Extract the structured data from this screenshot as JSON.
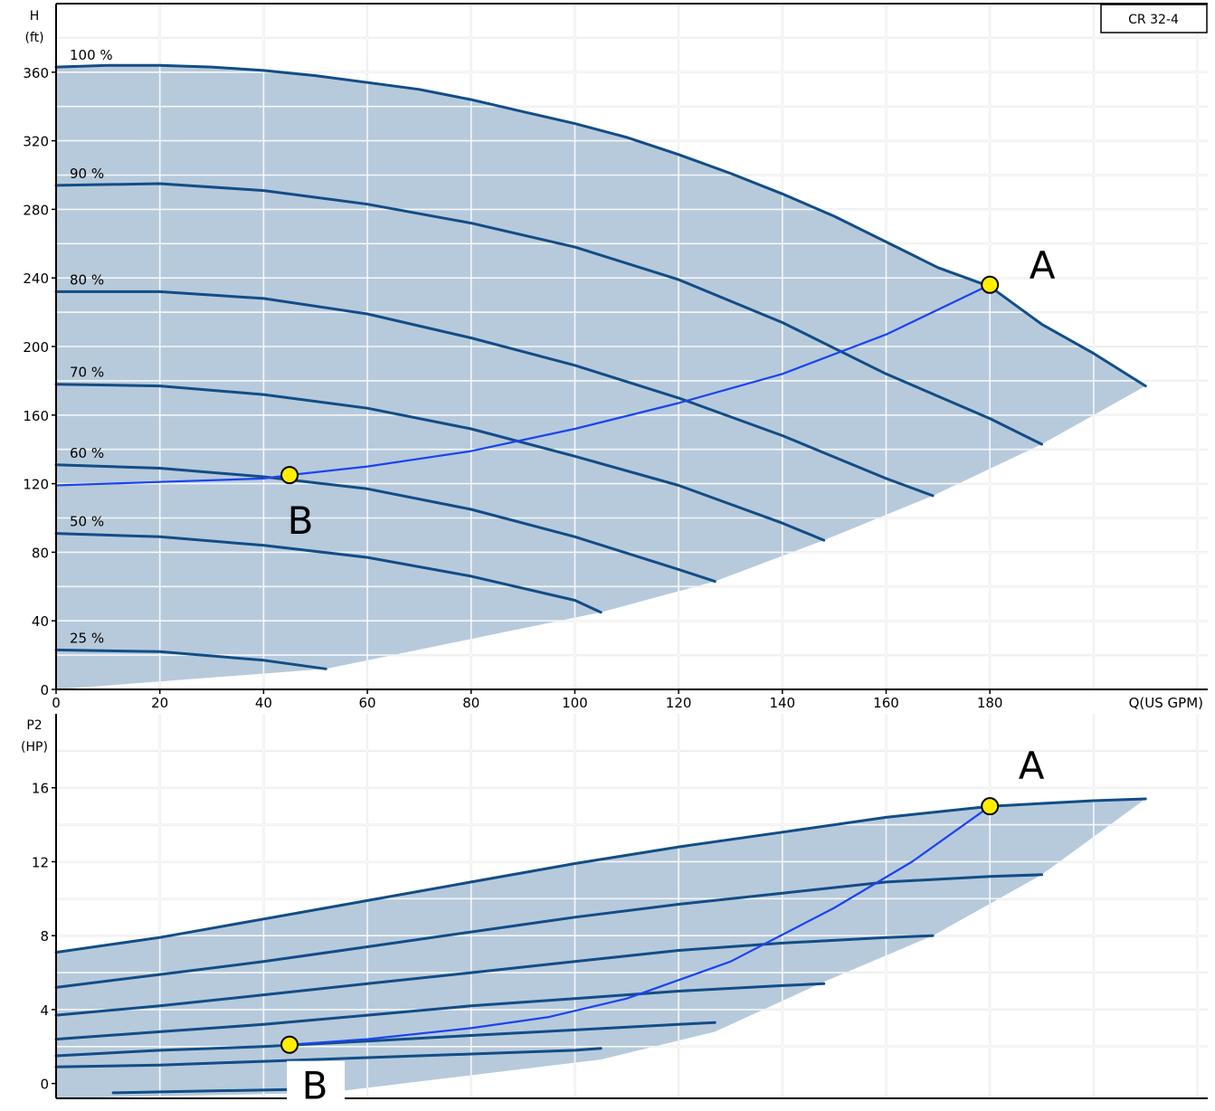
{
  "chart_data": [
    {
      "type": "line",
      "xlabel": "Q(US GPM)",
      "ylabel_line1": "H",
      "ylabel_line2": "(ft)",
      "model_label": "CR 32-4",
      "xlim": [
        0,
        222
      ],
      "ylim": [
        0,
        400
      ],
      "x_ticks": [
        0,
        20,
        40,
        60,
        80,
        100,
        120,
        140,
        160,
        180
      ],
      "y_ticks": [
        0,
        40,
        80,
        120,
        160,
        200,
        240,
        280,
        320,
        360
      ],
      "grid": true,
      "colors": {
        "fill": "#b7cadb",
        "curve": "#124d86",
        "system": "#1a44f0",
        "point": "#ffee00",
        "grid": "#ffffff",
        "grid_outer": "#cfcfcf"
      },
      "lower_boundary": [
        [
          0,
          0
        ],
        [
          52,
          12
        ],
        [
          105,
          45
        ],
        [
          127,
          63
        ],
        [
          148,
          87
        ],
        [
          169,
          113
        ],
        [
          190,
          143
        ],
        [
          210,
          177
        ]
      ],
      "series": [
        {
          "name": "100 %",
          "x": [
            0,
            10,
            20,
            30,
            40,
            50,
            60,
            70,
            80,
            90,
            100,
            110,
            120,
            130,
            140,
            150,
            160,
            170,
            180,
            190,
            200,
            210
          ],
          "y": [
            363,
            364,
            364,
            363,
            361,
            358,
            354,
            350,
            344,
            337,
            330,
            322,
            312,
            301,
            289,
            276,
            261,
            246,
            235,
            213,
            196,
            177
          ]
        },
        {
          "name": "90 %",
          "x": [
            0,
            20,
            40,
            60,
            80,
            100,
            120,
            140,
            160,
            180,
            190
          ],
          "y": [
            294,
            295,
            291,
            283,
            272,
            258,
            239,
            214,
            184,
            158,
            143
          ]
        },
        {
          "name": "80 %",
          "x": [
            0,
            20,
            40,
            60,
            80,
            100,
            120,
            140,
            160,
            169
          ],
          "y": [
            232,
            232,
            228,
            219,
            205,
            189,
            170,
            148,
            123,
            113
          ]
        },
        {
          "name": "70 %",
          "x": [
            0,
            20,
            40,
            60,
            80,
            100,
            120,
            140,
            148
          ],
          "y": [
            178,
            177,
            172,
            164,
            152,
            136,
            119,
            97,
            87
          ]
        },
        {
          "name": "60 %",
          "x": [
            0,
            20,
            40,
            60,
            80,
            100,
            120,
            127
          ],
          "y": [
            131,
            129,
            124,
            117,
            105,
            89,
            70,
            63
          ]
        },
        {
          "name": "50 %",
          "x": [
            0,
            20,
            40,
            60,
            80,
            100,
            105
          ],
          "y": [
            91,
            89,
            84,
            77,
            66,
            52,
            45
          ]
        },
        {
          "name": "25 %",
          "x": [
            0,
            20,
            40,
            52
          ],
          "y": [
            23,
            22,
            17,
            12
          ]
        }
      ],
      "system_curve": {
        "x": [
          0,
          20,
          40,
          45,
          60,
          80,
          100,
          120,
          140,
          160,
          180
        ],
        "y": [
          119,
          121,
          123,
          125,
          130,
          139,
          152,
          167,
          184,
          207,
          236
        ]
      },
      "points": [
        {
          "label": "A",
          "x": 180,
          "y": 236
        },
        {
          "label": "B",
          "x": 45,
          "y": 125
        }
      ]
    },
    {
      "type": "line",
      "xlabel": "",
      "ylabel_line1": "P2",
      "ylabel_line2": "(HP)",
      "xlim": [
        0,
        222
      ],
      "ylim": [
        -0.8,
        20
      ],
      "y_ticks": [
        0,
        4,
        8,
        12,
        16
      ],
      "grid": true,
      "lower_boundary": [
        [
          0,
          -0.8
        ],
        [
          52,
          -0.5
        ],
        [
          105,
          1.3
        ],
        [
          127,
          2.8
        ],
        [
          148,
          5.5
        ],
        [
          169,
          8.0
        ],
        [
          190,
          11.3
        ],
        [
          210,
          15.4
        ]
      ],
      "series": [
        {
          "name": "100 %",
          "x": [
            0,
            20,
            40,
            60,
            80,
            100,
            120,
            140,
            160,
            180,
            200,
            210
          ],
          "y": [
            7.1,
            7.9,
            8.9,
            9.9,
            10.9,
            11.9,
            12.8,
            13.6,
            14.4,
            15.0,
            15.3,
            15.4
          ]
        },
        {
          "name": "90 %",
          "x": [
            0,
            20,
            40,
            60,
            80,
            100,
            120,
            140,
            160,
            180,
            190
          ],
          "y": [
            5.2,
            5.9,
            6.6,
            7.4,
            8.2,
            9.0,
            9.7,
            10.3,
            10.9,
            11.2,
            11.3
          ]
        },
        {
          "name": "80 %",
          "x": [
            0,
            20,
            40,
            60,
            80,
            100,
            120,
            140,
            160,
            169
          ],
          "y": [
            3.7,
            4.2,
            4.8,
            5.4,
            6.0,
            6.6,
            7.2,
            7.6,
            7.9,
            8.0
          ]
        },
        {
          "name": "70 %",
          "x": [
            0,
            20,
            40,
            60,
            80,
            100,
            120,
            140,
            148
          ],
          "y": [
            2.4,
            2.8,
            3.2,
            3.7,
            4.2,
            4.6,
            5.0,
            5.3,
            5.4
          ]
        },
        {
          "name": "60 %",
          "x": [
            0,
            20,
            40,
            60,
            80,
            100,
            120,
            127
          ],
          "y": [
            1.5,
            1.8,
            2.0,
            2.3,
            2.6,
            2.9,
            3.2,
            3.3
          ]
        },
        {
          "name": "50 %",
          "x": [
            0,
            20,
            40,
            60,
            80,
            100,
            105
          ],
          "y": [
            0.9,
            1.0,
            1.2,
            1.4,
            1.6,
            1.8,
            1.9
          ]
        },
        {
          "name": "25 %",
          "x": [
            11,
            30,
            50,
            52
          ],
          "y": [
            -0.5,
            -0.4,
            -0.3,
            -0.3
          ]
        }
      ],
      "system_curve": {
        "x": [
          45,
          60,
          80,
          95,
          110,
          130,
          150,
          165,
          180
        ],
        "y": [
          2.1,
          2.4,
          3.0,
          3.6,
          4.6,
          6.6,
          9.5,
          12.0,
          15.0
        ]
      },
      "points": [
        {
          "label": "A",
          "x": 180,
          "y": 15.0
        },
        {
          "label": "B",
          "x": 45,
          "y": 2.1
        }
      ]
    }
  ]
}
